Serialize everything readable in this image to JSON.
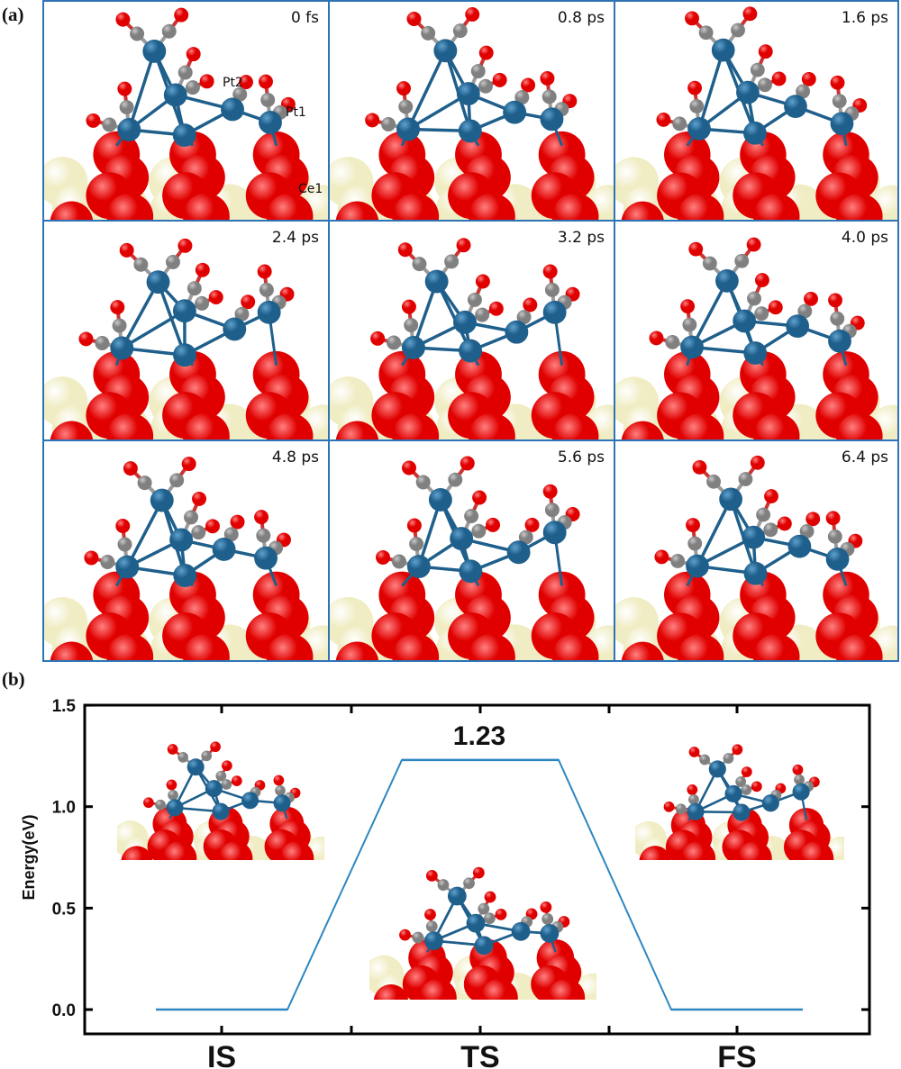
{
  "panel_a": {
    "label": "(a)",
    "frames": [
      {
        "time": "0 fs",
        "atom_labels": [
          "Pt2",
          "Pt1",
          "Ce1"
        ]
      },
      {
        "time": "0.8 ps"
      },
      {
        "time": "1.6 ps"
      },
      {
        "time": "2.4 ps"
      },
      {
        "time": "3.2 ps"
      },
      {
        "time": "4.0 ps"
      },
      {
        "time": "4.8 ps"
      },
      {
        "time": "5.6 ps"
      },
      {
        "time": "6.4 ps"
      }
    ],
    "border_color": "#2e74b5",
    "atom_colors": {
      "Pt": "#1f5f8b",
      "C": "#808080",
      "O": "#e00000",
      "Ce": "#f0edc4"
    }
  },
  "panel_b": {
    "label": "(b)",
    "barrier_label": "1.23",
    "insets": [
      "IS structure",
      "TS structure",
      "FS structure"
    ]
  },
  "chart_data": {
    "type": "line",
    "title": "",
    "xlabel": "",
    "ylabel": "Energy(eV)",
    "categories": [
      "IS",
      "TS",
      "FS"
    ],
    "values": [
      0.0,
      1.23,
      0.0
    ],
    "annotations": [
      {
        "text": "1.23",
        "at": "TS"
      }
    ],
    "ylim": [
      -0.15,
      1.5
    ],
    "yticks": [
      0.0,
      0.5,
      1.0,
      1.5
    ],
    "ytick_labels": [
      "0.0",
      "0.5",
      "1.0",
      "1.5"
    ],
    "grid": false,
    "legend": "none",
    "line_color": "#2e86c1",
    "style": "energy level diagram with flat segments joined by sloped connectors"
  }
}
